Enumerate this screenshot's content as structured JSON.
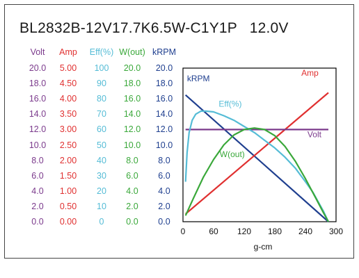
{
  "chart_data": {
    "type": "line",
    "title": "BL2832B-12V17.7K6.5W-C1Y1P   12.0V",
    "xlabel": "g-cm",
    "xlim": [
      0,
      300
    ],
    "x_ticks": [
      "0",
      "60",
      "120",
      "180",
      "240",
      "300"
    ],
    "grid": false,
    "columns": [
      {
        "key": "volt",
        "header": "Volt",
        "color": "#7b3a8c",
        "ticks": [
          "20.0",
          "18.0",
          "16.0",
          "14.0",
          "12.0",
          "10.0",
          "8.0",
          "6.0",
          "4.0",
          "2.0",
          "0.0"
        ],
        "ylim": [
          0,
          20
        ]
      },
      {
        "key": "amp",
        "header": "Amp",
        "color": "#e03030",
        "ticks": [
          "5.00",
          "4.50",
          "4.00",
          "3.50",
          "3.00",
          "2.50",
          "2.00",
          "1.50",
          "1.00",
          "0.50",
          "0.00"
        ],
        "ylim": [
          0,
          5
        ]
      },
      {
        "key": "eff",
        "header": "Eff(%)",
        "color": "#55bcd6",
        "ticks": [
          "100",
          "90",
          "80",
          "70",
          "60",
          "50",
          "40",
          "30",
          "20",
          "10",
          "0"
        ],
        "ylim": [
          0,
          100
        ]
      },
      {
        "key": "wout",
        "header": "W(out)",
        "color": "#3aa83a",
        "ticks": [
          "20.0",
          "18.0",
          "16.0",
          "14.0",
          "12.0",
          "10.0",
          "8.0",
          "6.0",
          "4.0",
          "2.0",
          "0.0"
        ],
        "ylim": [
          0,
          20
        ]
      },
      {
        "key": "krpm",
        "header": "kRPM",
        "color": "#1f3f8f",
        "ticks": [
          "20.0",
          "18.0",
          "16.0",
          "14.0",
          "12.0",
          "10.0",
          "8.0",
          "6.0",
          "4.0",
          "2.0",
          "0.0"
        ],
        "ylim": [
          0,
          20
        ]
      }
    ],
    "series": [
      {
        "name": "kRPM",
        "axis": "krpm",
        "color": "#1f3f8f",
        "x": [
          5,
          285
        ],
        "y": [
          16.5,
          0
        ]
      },
      {
        "name": "Amp",
        "axis": "amp",
        "color": "#e03030",
        "x": [
          5,
          285
        ],
        "y": [
          0.25,
          4.2
        ]
      },
      {
        "name": "Volt",
        "axis": "volt",
        "color": "#7b3a8c",
        "x": [
          5,
          285
        ],
        "y": [
          12,
          12
        ]
      },
      {
        "name": "Eff(%)",
        "axis": "eff",
        "color": "#55bcd6",
        "x": [
          5,
          8,
          12,
          18,
          25,
          35,
          45,
          60,
          80,
          100,
          120,
          140,
          160,
          180,
          200,
          220,
          240,
          255,
          265,
          275,
          285
        ],
        "y": [
          26,
          45,
          58,
          66,
          70,
          72,
          72,
          71.5,
          69,
          66,
          62,
          58,
          53,
          48,
          42,
          35,
          26,
          19,
          13,
          7,
          0
        ]
      },
      {
        "name": "W(out)",
        "axis": "wout",
        "color": "#3aa83a",
        "x": [
          5,
          20,
          40,
          60,
          80,
          100,
          120,
          140,
          160,
          180,
          200,
          220,
          240,
          260,
          275,
          285
        ],
        "y": [
          0.8,
          3.0,
          5.8,
          8.1,
          10.0,
          11.3,
          12.0,
          12.2,
          12.0,
          11.2,
          9.8,
          7.9,
          5.6,
          3.1,
          1.2,
          0
        ]
      }
    ],
    "series_labels": [
      {
        "name": "kRPM",
        "text": "kRPM",
        "x": 8,
        "y": 18.3,
        "axis": "krpm"
      },
      {
        "name": "Amp",
        "text": "Amp",
        "x": 232,
        "y": 4.75,
        "axis": "amp"
      },
      {
        "name": "Eff(%)",
        "text": "Eff(%)",
        "x": 70,
        "y": 75,
        "axis": "eff"
      },
      {
        "name": "Volt",
        "text": "Volt",
        "x": 244,
        "y": 11.0,
        "axis": "volt"
      },
      {
        "name": "W(out)",
        "text": "W(out)",
        "x": 72,
        "y": 8.4,
        "axis": "wout"
      }
    ]
  }
}
